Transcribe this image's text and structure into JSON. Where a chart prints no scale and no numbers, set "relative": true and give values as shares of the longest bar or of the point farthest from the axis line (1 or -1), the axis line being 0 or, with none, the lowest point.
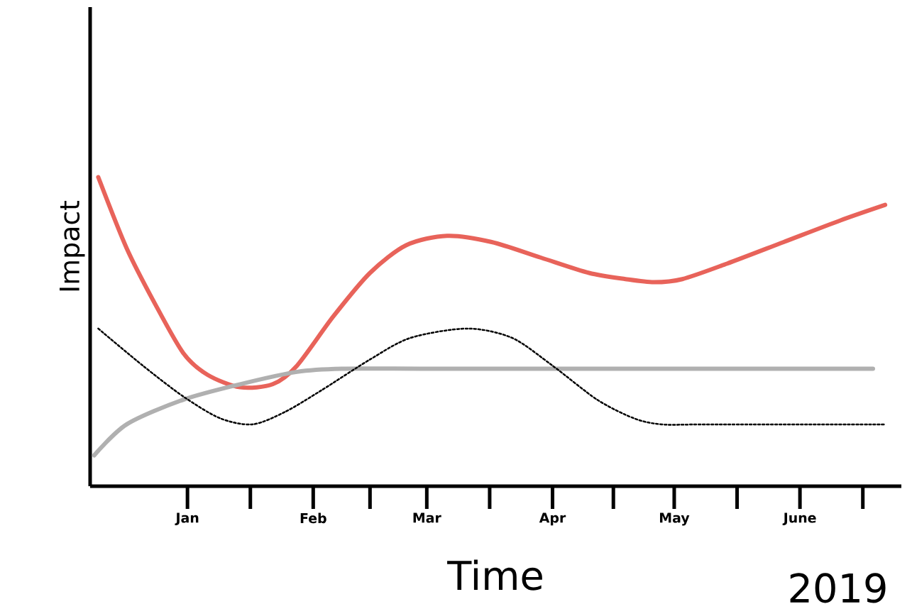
{
  "chart_data": {
    "type": "line",
    "relative": true,
    "xlabel": "Time",
    "ylabel": "Impact",
    "annotations": [
      "2019"
    ],
    "xlim": [
      "2018-12-08",
      "2019-06-26"
    ],
    "xticks": [
      {
        "value": "2019-01-01",
        "label": "Jan"
      },
      {
        "value": "2019-02-01",
        "label": "Feb"
      },
      {
        "value": "2019-03-01",
        "label": "Mar"
      },
      {
        "value": "2019-04-01",
        "label": "Apr"
      },
      {
        "value": "2019-05-01",
        "label": "May"
      },
      {
        "value": "2019-06-01",
        "label": "June"
      }
    ],
    "grid": false,
    "marker": "none",
    "series": [
      {
        "color": "#e8635a",
        "line_style": "solid",
        "x": [
          "2018-12-10",
          "2018-12-17",
          "2018-12-24",
          "2018-12-31",
          "2019-01-06",
          "2019-01-14",
          "2019-01-22",
          "2019-01-28",
          "2019-02-06",
          "2019-02-15",
          "2019-02-24",
          "2019-03-06",
          "2019-03-17",
          "2019-03-29",
          "2019-04-10",
          "2019-04-19",
          "2019-04-26",
          "2019-05-03",
          "2019-05-14",
          "2019-05-28",
          "2019-06-11",
          "2019-06-22"
        ],
        "values": [
          1.0,
          0.77,
          0.59,
          0.43,
          0.36,
          0.32,
          0.33,
          0.39,
          0.55,
          0.69,
          0.78,
          0.81,
          0.79,
          0.74,
          0.69,
          0.67,
          0.66,
          0.67,
          0.72,
          0.79,
          0.86,
          0.91
        ]
      },
      {
        "color": "#b0b0b0",
        "line_style": "solid",
        "x": [
          "2018-12-09",
          "2018-12-17",
          "2018-12-31",
          "2019-01-14",
          "2019-01-28",
          "2019-02-08",
          "2019-03-01",
          "2019-04-05",
          "2019-05-10",
          "2019-06-19"
        ],
        "values": [
          0.1,
          0.2,
          0.28,
          0.33,
          0.37,
          0.38,
          0.38,
          0.38,
          0.38,
          0.38
        ]
      },
      {
        "color": "#000000",
        "line_style": "dotted",
        "x": [
          "2018-12-10",
          "2018-12-21",
          "2018-12-31",
          "2019-01-09",
          "2019-01-17",
          "2019-01-25",
          "2019-02-03",
          "2019-02-15",
          "2019-02-25",
          "2019-03-11",
          "2019-03-22",
          "2019-04-01",
          "2019-04-12",
          "2019-04-21",
          "2019-04-28",
          "2019-05-10",
          "2019-06-22"
        ],
        "values": [
          0.51,
          0.39,
          0.29,
          0.22,
          0.2,
          0.24,
          0.31,
          0.41,
          0.48,
          0.51,
          0.48,
          0.39,
          0.28,
          0.22,
          0.2,
          0.2,
          0.2
        ]
      }
    ]
  }
}
